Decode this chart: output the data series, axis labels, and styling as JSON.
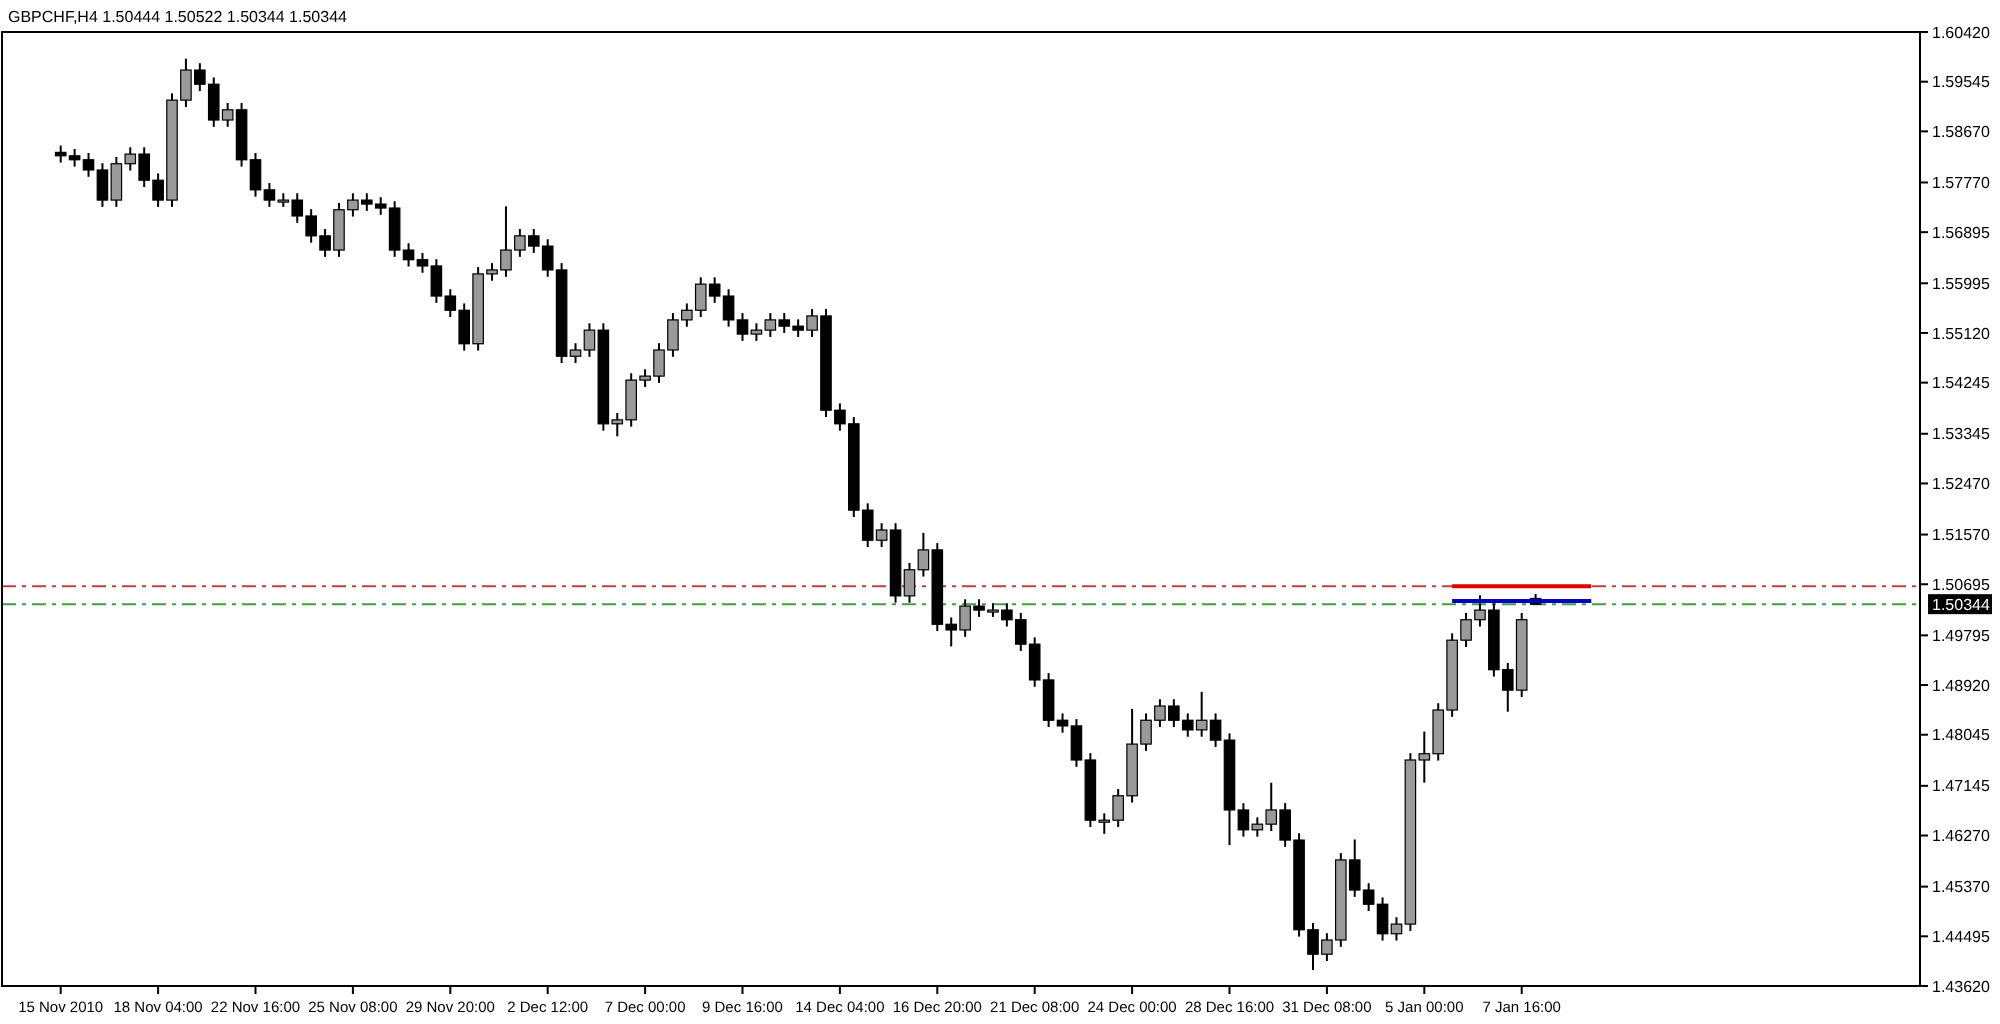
{
  "chart_data": {
    "type": "candlestick",
    "title": "GBPCHF,H4  1.50444 1.50522 1.50344 1.50344",
    "categories": [
      "15 Nov 2010",
      null,
      null,
      null,
      null,
      null,
      null,
      "18 Nov 04:00",
      null,
      null,
      null,
      null,
      null,
      null,
      "22 Nov 16:00",
      null,
      null,
      null,
      null,
      null,
      null,
      "25 Nov 08:00",
      null,
      null,
      null,
      null,
      null,
      null,
      "29 Nov 20:00",
      null,
      null,
      null,
      null,
      null,
      null,
      "2 Dec 12:00",
      null,
      null,
      null,
      null,
      null,
      null,
      "7 Dec 00:00",
      null,
      null,
      null,
      null,
      null,
      null,
      "9 Dec 16:00",
      null,
      null,
      null,
      null,
      null,
      null,
      "14 Dec 04:00",
      null,
      null,
      null,
      null,
      null,
      null,
      "16 Dec 20:00",
      null,
      null,
      null,
      null,
      null,
      null,
      "21 Dec 08:00",
      null,
      null,
      null,
      null,
      null,
      null,
      "24 Dec 00:00",
      null,
      null,
      null,
      null,
      null,
      null,
      "28 Dec 16:00",
      null,
      null,
      null,
      null,
      null,
      null,
      "31 Dec 08:00",
      null,
      null,
      null,
      null,
      null,
      null,
      "5 Jan 00:00",
      null,
      null,
      null,
      null,
      null,
      null,
      "7 Jan 16:00",
      null,
      null,
      null,
      null,
      null,
      null,
      null,
      null,
      null,
      null,
      null,
      null,
      null,
      null,
      null,
      null,
      null,
      null,
      null,
      null,
      null,
      null,
      null,
      null,
      null,
      null,
      null,
      null
    ],
    "ohlc": [
      [
        1.583,
        1.5842,
        1.5812,
        1.5824
      ],
      [
        1.5824,
        1.5836,
        1.5805,
        1.5817
      ],
      [
        1.5817,
        1.5829,
        1.5787,
        1.5799
      ],
      [
        1.5799,
        1.5811,
        1.5734,
        1.5746
      ],
      [
        1.5746,
        1.5822,
        1.5734,
        1.581
      ],
      [
        1.581,
        1.5839,
        1.5798,
        1.5827
      ],
      [
        1.5827,
        1.5839,
        1.5769,
        1.5781
      ],
      [
        1.5781,
        1.5793,
        1.5734,
        1.5746
      ],
      [
        1.5746,
        1.5934,
        1.5734,
        1.5922
      ],
      [
        1.5922,
        1.5995,
        1.591,
        1.5975
      ],
      [
        1.5975,
        1.5987,
        1.5938,
        1.595
      ],
      [
        1.595,
        1.5962,
        1.5875,
        1.5887
      ],
      [
        1.5887,
        1.5917,
        1.5875,
        1.5905
      ],
      [
        1.5905,
        1.5917,
        1.5805,
        1.5817
      ],
      [
        1.5817,
        1.5829,
        1.5752,
        1.5764
      ],
      [
        1.5764,
        1.5776,
        1.5734,
        1.5746
      ],
      [
        1.5746,
        1.5758,
        1.5734,
        1.5746
      ],
      [
        1.5746,
        1.5758,
        1.5706,
        1.5718
      ],
      [
        1.5718,
        1.573,
        1.5671,
        1.5683
      ],
      [
        1.5683,
        1.5695,
        1.5646,
        1.5658
      ],
      [
        1.5658,
        1.5741,
        1.5646,
        1.5729
      ],
      [
        1.5729,
        1.5758,
        1.5717,
        1.5746
      ],
      [
        1.5746,
        1.5758,
        1.5727,
        1.5739
      ],
      [
        1.5739,
        1.5751,
        1.572,
        1.5732
      ],
      [
        1.5732,
        1.5744,
        1.5646,
        1.5658
      ],
      [
        1.5658,
        1.567,
        1.5629,
        1.5641
      ],
      [
        1.5641,
        1.5653,
        1.5618,
        1.563
      ],
      [
        1.563,
        1.5642,
        1.5565,
        1.5577
      ],
      [
        1.5577,
        1.5589,
        1.554,
        1.5552
      ],
      [
        1.5552,
        1.5564,
        1.5481,
        1.5493
      ],
      [
        1.5493,
        1.5628,
        1.5481,
        1.5616
      ],
      [
        1.5616,
        1.5635,
        1.5604,
        1.5623
      ],
      [
        1.5623,
        1.5735,
        1.5611,
        1.5658
      ],
      [
        1.5658,
        1.5695,
        1.5646,
        1.5683
      ],
      [
        1.5683,
        1.5695,
        1.5653,
        1.5665
      ],
      [
        1.5665,
        1.5677,
        1.5611,
        1.5623
      ],
      [
        1.5623,
        1.5635,
        1.5459,
        1.5471
      ],
      [
        1.5471,
        1.5494,
        1.5459,
        1.5482
      ],
      [
        1.5482,
        1.5529,
        1.547,
        1.5517
      ],
      [
        1.5517,
        1.5529,
        1.534,
        1.5352
      ],
      [
        1.5352,
        1.5371,
        1.533,
        1.5359
      ],
      [
        1.5359,
        1.5441,
        1.5347,
        1.5429
      ],
      [
        1.5429,
        1.5448,
        1.5417,
        1.5436
      ],
      [
        1.5436,
        1.5494,
        1.5424,
        1.5482
      ],
      [
        1.5482,
        1.5547,
        1.547,
        1.5535
      ],
      [
        1.5535,
        1.5564,
        1.5523,
        1.5552
      ],
      [
        1.5552,
        1.561,
        1.554,
        1.5598
      ],
      [
        1.5598,
        1.561,
        1.5565,
        1.5577
      ],
      [
        1.5577,
        1.5589,
        1.5523,
        1.5535
      ],
      [
        1.5535,
        1.5547,
        1.5498,
        1.551
      ],
      [
        1.551,
        1.5529,
        1.5498,
        1.5517
      ],
      [
        1.5517,
        1.5547,
        1.5505,
        1.5535
      ],
      [
        1.5535,
        1.5547,
        1.5512,
        1.5524
      ],
      [
        1.5524,
        1.5536,
        1.5505,
        1.5517
      ],
      [
        1.5517,
        1.5554,
        1.5505,
        1.5542
      ],
      [
        1.5542,
        1.5554,
        1.5364,
        1.5376
      ],
      [
        1.5376,
        1.5388,
        1.534,
        1.5352
      ],
      [
        1.5352,
        1.5364,
        1.5188,
        1.52
      ],
      [
        1.52,
        1.5212,
        1.5135,
        1.5147
      ],
      [
        1.5147,
        1.5177,
        1.5135,
        1.5165
      ],
      [
        1.5165,
        1.5177,
        1.5037,
        1.5049
      ],
      [
        1.5049,
        1.5107,
        1.5037,
        1.5095
      ],
      [
        1.5095,
        1.516,
        1.5083,
        1.513
      ],
      [
        1.513,
        1.5142,
        1.4987,
        1.4999
      ],
      [
        1.4999,
        1.5011,
        1.496,
        1.4989
      ],
      [
        1.4989,
        1.5043,
        1.4977,
        1.5031
      ],
      [
        1.5031,
        1.5043,
        1.5012,
        1.5024
      ],
      [
        1.5024,
        1.5036,
        1.5012,
        1.5024
      ],
      [
        1.5024,
        1.5036,
        1.4995,
        1.5007
      ],
      [
        1.5007,
        1.5019,
        1.4952,
        1.4964
      ],
      [
        1.4964,
        1.4976,
        1.4889,
        1.4901
      ],
      [
        1.4901,
        1.4913,
        1.4818,
        1.483
      ],
      [
        1.483,
        1.4842,
        1.4808,
        1.482
      ],
      [
        1.482,
        1.4832,
        1.4748,
        1.476
      ],
      [
        1.476,
        1.4772,
        1.4642,
        1.4654
      ],
      [
        1.4654,
        1.4666,
        1.463,
        1.4654
      ],
      [
        1.4654,
        1.4709,
        1.4642,
        1.4697
      ],
      [
        1.4697,
        1.485,
        1.4685,
        1.4788
      ],
      [
        1.4788,
        1.4842,
        1.4776,
        1.483
      ],
      [
        1.483,
        1.4867,
        1.4818,
        1.4855
      ],
      [
        1.4855,
        1.4867,
        1.4818,
        1.483
      ],
      [
        1.483,
        1.4842,
        1.4801,
        1.4813
      ],
      [
        1.4813,
        1.488,
        1.4801,
        1.483
      ],
      [
        1.483,
        1.4842,
        1.4783,
        1.4795
      ],
      [
        1.4795,
        1.4807,
        1.461,
        1.4672
      ],
      [
        1.4672,
        1.4684,
        1.4625,
        1.4637
      ],
      [
        1.4637,
        1.4659,
        1.4625,
        1.4647
      ],
      [
        1.4647,
        1.472,
        1.4635,
        1.4672
      ],
      [
        1.4672,
        1.4684,
        1.4607,
        1.4619
      ],
      [
        1.4619,
        1.4631,
        1.4449,
        1.4461
      ],
      [
        1.4461,
        1.4473,
        1.439,
        1.4418
      ],
      [
        1.4418,
        1.4455,
        1.4406,
        1.4443
      ],
      [
        1.4443,
        1.4596,
        1.4431,
        1.4584
      ],
      [
        1.4584,
        1.462,
        1.4519,
        1.4531
      ],
      [
        1.4531,
        1.4543,
        1.4494,
        1.4506
      ],
      [
        1.4506,
        1.4518,
        1.4442,
        1.4454
      ],
      [
        1.4454,
        1.4483,
        1.4442,
        1.4471
      ],
      [
        1.4471,
        1.4772,
        1.4459,
        1.476
      ],
      [
        1.476,
        1.481,
        1.472,
        1.4771
      ],
      [
        1.4771,
        1.486,
        1.4759,
        1.4848
      ],
      [
        1.4848,
        1.4983,
        1.4836,
        1.4971
      ],
      [
        1.4971,
        1.5019,
        1.4959,
        1.5007
      ],
      [
        1.5007,
        1.505,
        1.4995,
        1.5024
      ],
      [
        1.5024,
        1.5036,
        1.4907,
        1.4919
      ],
      [
        1.4919,
        1.4931,
        1.4845,
        1.4883
      ],
      [
        1.4883,
        1.5019,
        1.4871,
        1.5007
      ],
      [
        1.50444,
        1.50522,
        1.50344,
        1.50344
      ],
      null,
      null,
      null,
      null,
      null,
      null,
      null,
      null,
      null,
      null,
      null,
      null,
      null,
      null,
      null,
      null,
      null,
      null,
      null,
      null,
      null,
      null,
      null,
      null,
      null,
      null,
      null
    ],
    "series": [
      {
        "type": "line",
        "color": "#e00000",
        "values": [
          null,
          null,
          null,
          null,
          null,
          null,
          null,
          null,
          null,
          null,
          null,
          null,
          null,
          null,
          null,
          null,
          null,
          null,
          null,
          null,
          null,
          null,
          null,
          null,
          null,
          null,
          null,
          null,
          null,
          null,
          null,
          null,
          null,
          null,
          null,
          null,
          null,
          null,
          null,
          null,
          null,
          null,
          null,
          null,
          null,
          null,
          null,
          null,
          null,
          null,
          null,
          null,
          null,
          null,
          null,
          null,
          null,
          null,
          null,
          null,
          null,
          null,
          null,
          null,
          null,
          null,
          null,
          null,
          null,
          null,
          null,
          null,
          null,
          null,
          null,
          null,
          null,
          null,
          null,
          null,
          null,
          null,
          null,
          null,
          null,
          null,
          null,
          null,
          null,
          null,
          null,
          null,
          null,
          null,
          null,
          null,
          null,
          null,
          null,
          null,
          1.5066,
          1.5066,
          1.5066,
          1.5066,
          1.5066,
          1.5066,
          1.5066,
          1.5066,
          1.5066,
          1.5066,
          1.5066,
          null,
          null,
          null,
          null,
          null,
          null,
          null,
          null,
          null,
          null,
          null,
          null,
          null,
          null,
          null,
          null,
          null,
          null,
          null,
          null,
          null,
          null,
          null
        ]
      },
      {
        "type": "line",
        "color": "#0000c0",
        "values": [
          null,
          null,
          null,
          null,
          null,
          null,
          null,
          null,
          null,
          null,
          null,
          null,
          null,
          null,
          null,
          null,
          null,
          null,
          null,
          null,
          null,
          null,
          null,
          null,
          null,
          null,
          null,
          null,
          null,
          null,
          null,
          null,
          null,
          null,
          null,
          null,
          null,
          null,
          null,
          null,
          null,
          null,
          null,
          null,
          null,
          null,
          null,
          null,
          null,
          null,
          null,
          null,
          null,
          null,
          null,
          null,
          null,
          null,
          null,
          null,
          null,
          null,
          null,
          null,
          null,
          null,
          null,
          null,
          null,
          null,
          null,
          null,
          null,
          null,
          null,
          null,
          null,
          null,
          null,
          null,
          null,
          null,
          null,
          null,
          null,
          null,
          null,
          null,
          null,
          null,
          null,
          null,
          null,
          null,
          null,
          null,
          null,
          null,
          null,
          null,
          1.504,
          1.504,
          1.504,
          1.504,
          1.504,
          1.504,
          1.504,
          1.504,
          1.504,
          1.504,
          1.504,
          null,
          null,
          null,
          null,
          null,
          null,
          null,
          null,
          null,
          null,
          null,
          null,
          null,
          null,
          null,
          null,
          null,
          null,
          null,
          null,
          null,
          null,
          null
        ]
      }
    ],
    "ylim": [
      1.4362,
      1.6042
    ],
    "yticks": [
      {
        "value": 1.6042,
        "label": "1.60420"
      },
      1.59545,
      {
        "value": 1.5867,
        "label": "1.58670"
      },
      {
        "value": 1.5777,
        "label": "1.57770"
      },
      1.56895,
      1.55995,
      {
        "value": 1.5512,
        "label": "1.55120"
      },
      1.54245,
      1.53345,
      {
        "value": 1.5247,
        "label": "1.52470"
      },
      {
        "value": 1.5157,
        "label": "1.51570"
      },
      1.50695,
      1.49795,
      {
        "value": 1.4892,
        "label": "1.48920"
      },
      1.48045,
      1.47145,
      {
        "value": 1.4627,
        "label": "1.46270"
      },
      {
        "value": 1.4537,
        "label": "1.45370"
      },
      1.44495,
      {
        "value": 1.4362,
        "label": "1.43620"
      }
    ],
    "ref_lines": [
      {
        "axis": "y",
        "value": 1.5066,
        "color": "#c04040",
        "line_style": "dashed"
      },
      {
        "axis": "y",
        "value": 1.50344,
        "label": "1.50344",
        "color": "#40a040",
        "line_style": "dashed"
      }
    ],
    "grid": false
  }
}
